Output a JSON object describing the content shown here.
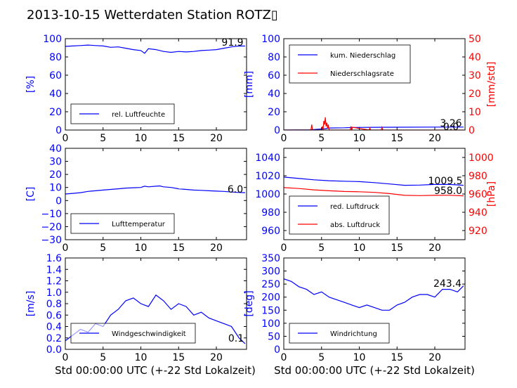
{
  "title": "2013-10-15 Wetterdaten Station ROTZ▯",
  "colors": {
    "blue": "#0000ff",
    "red": "#ff0000",
    "black": "#000000"
  },
  "xlabel": "Std 00:00:00 UTC (+-22 Std Lokalzeit)",
  "chart_data": [
    {
      "type": "line",
      "ylabel": "[%]",
      "xlim": [
        0,
        24
      ],
      "ylim": [
        0,
        100
      ],
      "xticks": [
        0,
        5,
        10,
        15,
        20
      ],
      "yticks": [
        0,
        20,
        40,
        60,
        80,
        100
      ],
      "legend": [
        "rel. Luftfeuchte"
      ],
      "value_labels": [
        "91.9"
      ],
      "series": [
        {
          "name": "rel. Luftfeuchte",
          "color": "blue",
          "x": [
            0,
            1,
            2,
            3,
            4,
            5,
            6,
            7,
            8,
            9,
            10,
            10.5,
            11,
            12,
            13,
            14,
            15,
            16,
            17,
            18,
            19,
            20,
            21,
            22,
            23,
            23.8
          ],
          "y": [
            91.5,
            92,
            92.5,
            93,
            92.5,
            92,
            90.5,
            91,
            89.5,
            88,
            87,
            84,
            89,
            88,
            86,
            85,
            86,
            85.5,
            86,
            87,
            87.5,
            88,
            89.5,
            91,
            92,
            91.9
          ]
        }
      ]
    },
    {
      "type": "line",
      "ylabel": "[mm]",
      "ylabel_right": "[mm/std]",
      "xlim": [
        0,
        24
      ],
      "ylim": [
        0,
        100
      ],
      "ylim_right": [
        0,
        50
      ],
      "xticks": [
        0,
        5,
        10,
        15,
        20
      ],
      "yticks": [
        0,
        20,
        40,
        60,
        80,
        100
      ],
      "yticks_right": [
        0,
        10,
        20,
        30,
        40,
        50
      ],
      "legend": [
        "kum. Niederschlag",
        "Niederschlagsrate"
      ],
      "value_labels": [
        "3.26",
        "0.0"
      ],
      "series": [
        {
          "name": "kum. Niederschlag",
          "color": "blue",
          "axis": "left",
          "x": [
            0,
            3.5,
            5.5,
            6,
            8,
            9,
            12,
            15,
            20,
            23.8
          ],
          "y": [
            0,
            0.2,
            1.5,
            2.2,
            2.5,
            2.8,
            3.0,
            3.1,
            3.2,
            3.26
          ]
        },
        {
          "name": "Niederschlagsrate",
          "color": "red",
          "axis": "right",
          "x": [
            0,
            3.6,
            3.7,
            3.8,
            5.0,
            5.1,
            5.2,
            5.3,
            5.4,
            5.5,
            5.6,
            5.7,
            5.8,
            5.9,
            6.0,
            6.2,
            8.8,
            8.9,
            9.0,
            9.1,
            11.3,
            11.4,
            11.5,
            12.9,
            13.0,
            13.1,
            23.8
          ],
          "y": [
            0,
            0,
            3,
            0,
            0,
            2,
            0,
            5,
            3,
            7,
            2,
            4,
            1,
            3,
            0,
            0,
            0,
            2,
            0,
            1.5,
            0,
            1,
            0,
            0,
            1.5,
            0,
            0
          ]
        }
      ]
    },
    {
      "type": "line",
      "ylabel": "[C]",
      "xlim": [
        0,
        24
      ],
      "ylim": [
        -30,
        40
      ],
      "xticks": [
        0,
        5,
        10,
        15,
        20
      ],
      "yticks": [
        -30,
        -20,
        -10,
        0,
        10,
        20,
        30,
        40
      ],
      "legend": [
        "Lufttemperatur"
      ],
      "value_labels": [
        "6.0"
      ],
      "series": [
        {
          "name": "Lufttemperatur",
          "color": "blue",
          "x": [
            0,
            1,
            2,
            3,
            4,
            5,
            6,
            7,
            8,
            9,
            10,
            10.5,
            11,
            12,
            12.5,
            13,
            14,
            15,
            16,
            17,
            18,
            19,
            20,
            21,
            22,
            23,
            23.8
          ],
          "y": [
            5.0,
            5.5,
            6,
            7,
            7.5,
            8,
            8.5,
            9,
            9.5,
            9.8,
            10,
            11,
            10.5,
            11,
            11.2,
            10.5,
            10,
            9,
            8.5,
            8,
            7.8,
            7.5,
            7.2,
            7,
            6.5,
            6.2,
            6.0
          ]
        }
      ]
    },
    {
      "type": "line",
      "ylabel": "",
      "ylabel_right": "[hPa]",
      "xlim": [
        0,
        24
      ],
      "ylim": [
        950,
        1050
      ],
      "ylim_right": [
        910,
        1010
      ],
      "xticks": [
        0,
        5,
        10,
        15,
        20
      ],
      "yticks": [
        960,
        980,
        1000,
        1020,
        1040
      ],
      "yticks_right": [
        920,
        940,
        960,
        980,
        1000
      ],
      "legend": [
        "red. Luftdruck",
        "abs. Luftdruck"
      ],
      "value_labels": [
        "1009.5",
        "958.0"
      ],
      "series": [
        {
          "name": "red. Luftdruck",
          "color": "blue",
          "axis": "left",
          "x": [
            0,
            2,
            4,
            6,
            8,
            10,
            12,
            14,
            16,
            18,
            20,
            22,
            23.8
          ],
          "y": [
            1018.5,
            1017,
            1015.5,
            1014.5,
            1014,
            1013.5,
            1012.5,
            1011,
            1009.5,
            1009.8,
            1010.5,
            1010.5,
            1009.5
          ]
        },
        {
          "name": "abs. Luftdruck",
          "color": "red",
          "axis": "right",
          "x": [
            0,
            2,
            4,
            6,
            8,
            10,
            12,
            14,
            16,
            18,
            20,
            22,
            23.8
          ],
          "y": [
            967,
            966,
            964.5,
            963.5,
            962.8,
            962.5,
            961.8,
            960.5,
            958.5,
            958.2,
            958.5,
            958.6,
            958.0
          ]
        }
      ]
    },
    {
      "type": "line",
      "ylabel": "[m/s]",
      "xlim": [
        0,
        24
      ],
      "ylim": [
        0,
        1.6
      ],
      "xticks": [
        0,
        5,
        10,
        15,
        20
      ],
      "yticks": [
        0.0,
        0.2,
        0.4,
        0.6,
        0.8,
        1.0,
        1.2,
        1.4,
        1.6
      ],
      "legend": [
        "Windgeschwindigkeit"
      ],
      "value_labels": [
        "0.1"
      ],
      "series": [
        {
          "name": "Windgeschwindigkeit",
          "color": "blue",
          "x": [
            0,
            1,
            2,
            3,
            4,
            5,
            6,
            7,
            8,
            9,
            10,
            11,
            12,
            13,
            14,
            15,
            16,
            17,
            18,
            19,
            20,
            21,
            22,
            23,
            23.8
          ],
          "y": [
            0.15,
            0.25,
            0.35,
            0.3,
            0.45,
            0.4,
            0.6,
            0.7,
            0.85,
            0.9,
            0.8,
            0.75,
            0.95,
            0.85,
            0.7,
            0.8,
            0.75,
            0.6,
            0.65,
            0.55,
            0.5,
            0.45,
            0.4,
            0.2,
            0.1
          ]
        }
      ]
    },
    {
      "type": "line",
      "ylabel": "[deg]",
      "xlim": [
        0,
        24
      ],
      "ylim": [
        0,
        350
      ],
      "xticks": [
        0,
        5,
        10,
        15,
        20
      ],
      "yticks": [
        0,
        50,
        100,
        150,
        200,
        250,
        300,
        350
      ],
      "legend": [
        "Windrichtung"
      ],
      "value_labels": [
        "243.4"
      ],
      "series": [
        {
          "name": "Windrichtung",
          "color": "blue",
          "x": [
            0,
            1,
            2,
            3,
            4,
            5,
            6,
            7,
            8,
            9,
            10,
            11,
            12,
            13,
            14,
            15,
            16,
            17,
            18,
            19,
            20,
            21,
            22,
            23,
            23.8
          ],
          "y": [
            270,
            260,
            240,
            230,
            210,
            220,
            200,
            190,
            180,
            170,
            160,
            170,
            160,
            150,
            150,
            170,
            180,
            200,
            210,
            210,
            200,
            230,
            230,
            220,
            243.4
          ]
        }
      ]
    }
  ]
}
